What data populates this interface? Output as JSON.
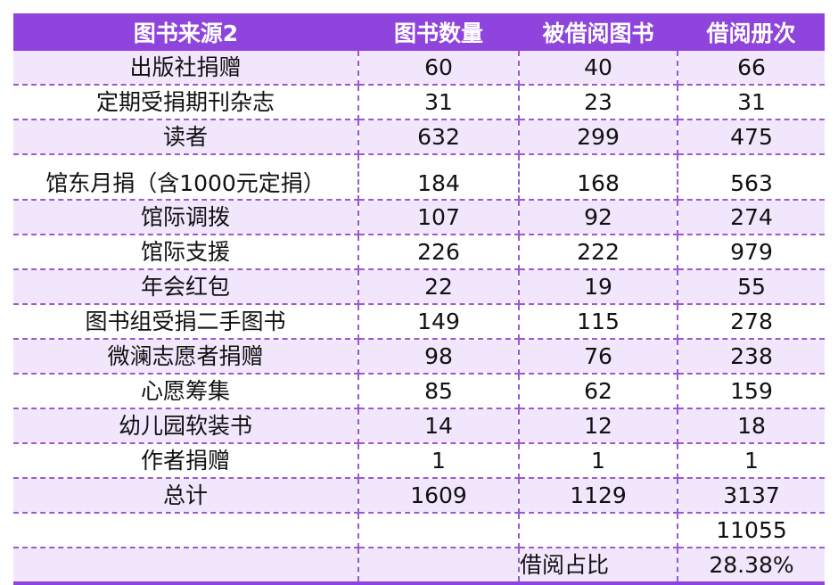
{
  "headers": [
    "图书来源2",
    "图书数量",
    "被借阅图书",
    "借阅册次"
  ],
  "rows": [
    [
      "出版社捐赠",
      "60",
      "40",
      "66"
    ],
    [
      "定期受捐期刊杂志",
      "31",
      "23",
      "31"
    ],
    [
      "读者",
      "632",
      "299",
      "475"
    ],
    [
      "馆东月捐（含1000元定捐）",
      "184",
      "168",
      "563"
    ],
    [
      "馆际调拨",
      "107",
      "92",
      "274"
    ],
    [
      "馆际支援",
      "226",
      "222",
      "979"
    ],
    [
      "年会红包",
      "22",
      "19",
      "55"
    ],
    [
      "图书组受捐二手图书",
      "149",
      "115",
      "278"
    ],
    [
      "微澜志愿者捐赠",
      "98",
      "76",
      "238"
    ],
    [
      "心愿筹集",
      "85",
      "62",
      "159"
    ],
    [
      "幼儿园软装书",
      "14",
      "12",
      "18"
    ],
    [
      "作者捐赠",
      "1",
      "1",
      "1"
    ],
    [
      "总计",
      "1609",
      "1129",
      "3137"
    ],
    [
      "",
      "",
      "",
      "11055"
    ],
    [
      "",
      "",
      "借阅占比",
      "28.38%"
    ]
  ],
  "colors": {
    "header_bg": "#8e44dd",
    "band": "#f1e6fc",
    "border": "#9b59d0"
  }
}
